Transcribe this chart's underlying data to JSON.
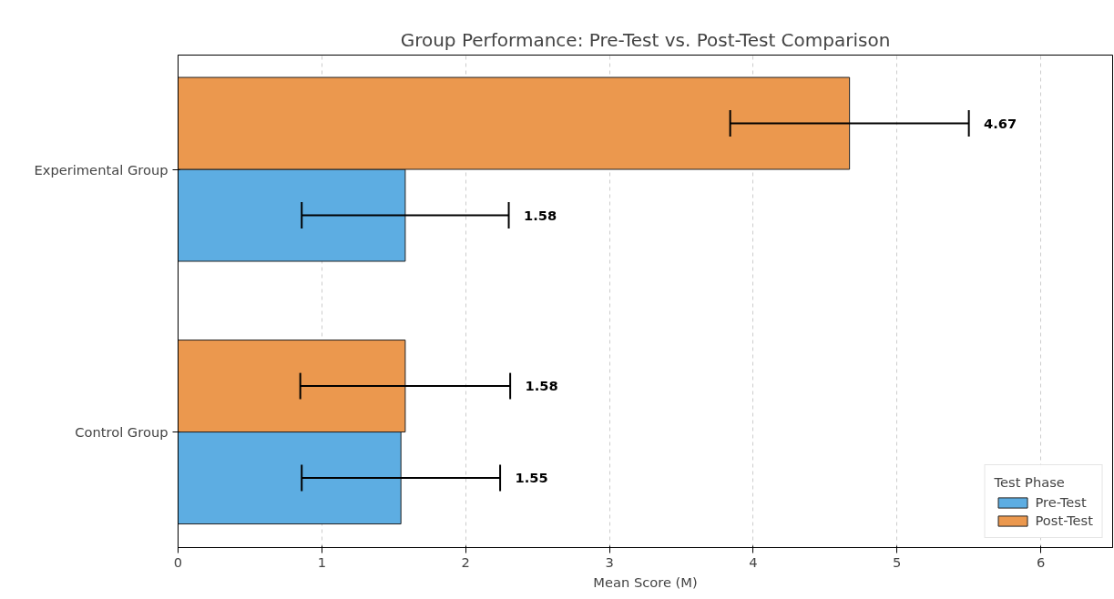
{
  "chart_data": {
    "type": "bar",
    "orientation": "horizontal",
    "title": "Group Performance: Pre-Test vs. Post-Test Comparison",
    "xlabel": "Mean Score (M)",
    "legend_title": "Test Phase",
    "categories": [
      "Experimental Group",
      "Control Group"
    ],
    "series": [
      {
        "name": "Pre-Test",
        "color": "#5dade2",
        "values": [
          1.58,
          1.55
        ],
        "errors": [
          0.72,
          0.69
        ]
      },
      {
        "name": "Post-Test",
        "color": "#eb984e",
        "values": [
          4.67,
          1.58
        ],
        "errors": [
          0.83,
          0.73
        ]
      }
    ],
    "annotations": [
      "1.58",
      "1.55",
      "4.67",
      "1.58"
    ],
    "xlim": [
      0,
      6.5
    ],
    "xticks": [
      0,
      1,
      2,
      3,
      4,
      5,
      6
    ],
    "grid": "x",
    "legend": "bottom right"
  }
}
